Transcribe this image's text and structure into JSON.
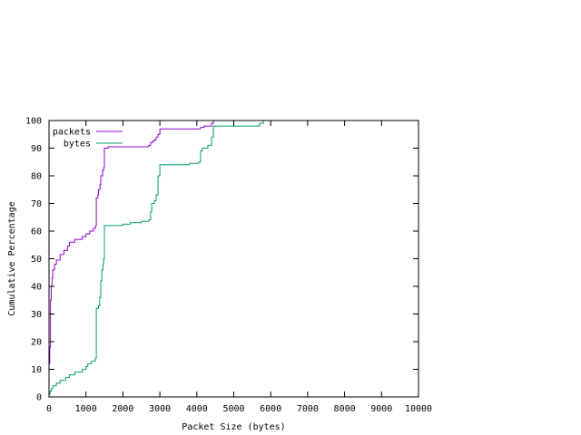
{
  "chart_data": {
    "type": "line",
    "xlabel": "Packet Size (bytes)",
    "ylabel": "Cumulative Percentage",
    "xlim": [
      0,
      10000
    ],
    "ylim": [
      0,
      100
    ],
    "x_ticks": [
      0,
      1000,
      2000,
      3000,
      4000,
      5000,
      6000,
      7000,
      8000,
      9000,
      10000
    ],
    "y_ticks": [
      0,
      10,
      20,
      30,
      40,
      50,
      60,
      70,
      80,
      90,
      100
    ],
    "grid": false,
    "legend_position": "top-left",
    "series": [
      {
        "name": "packets",
        "color": "#9400d3",
        "points": [
          [
            0,
            12
          ],
          [
            20,
            18
          ],
          [
            40,
            35
          ],
          [
            60,
            40
          ],
          [
            80,
            43
          ],
          [
            100,
            46
          ],
          [
            150,
            48
          ],
          [
            200,
            49.5
          ],
          [
            300,
            51.5
          ],
          [
            400,
            53
          ],
          [
            500,
            54.5
          ],
          [
            550,
            56
          ],
          [
            700,
            57
          ],
          [
            900,
            58
          ],
          [
            1000,
            59
          ],
          [
            1100,
            60
          ],
          [
            1200,
            61
          ],
          [
            1260,
            62
          ],
          [
            1280,
            72
          ],
          [
            1320,
            73
          ],
          [
            1340,
            75
          ],
          [
            1380,
            77
          ],
          [
            1400,
            80
          ],
          [
            1450,
            82
          ],
          [
            1480,
            83
          ],
          [
            1500,
            90
          ],
          [
            1600,
            90.5
          ],
          [
            2000,
            90.5
          ],
          [
            2700,
            91
          ],
          [
            2750,
            92
          ],
          [
            2800,
            92.5
          ],
          [
            2850,
            93
          ],
          [
            2900,
            94
          ],
          [
            2950,
            95
          ],
          [
            3000,
            97
          ],
          [
            3500,
            97
          ],
          [
            4100,
            97.5
          ],
          [
            4200,
            98
          ],
          [
            4400,
            99
          ],
          [
            4450,
            100
          ],
          [
            5500,
            100
          ]
        ]
      },
      {
        "name": "bytes",
        "color": "#009e73",
        "points": [
          [
            0,
            1
          ],
          [
            30,
            2
          ],
          [
            60,
            3
          ],
          [
            100,
            4
          ],
          [
            200,
            5
          ],
          [
            300,
            6
          ],
          [
            450,
            7
          ],
          [
            550,
            8
          ],
          [
            700,
            9
          ],
          [
            900,
            10
          ],
          [
            1000,
            11
          ],
          [
            1050,
            12
          ],
          [
            1150,
            13
          ],
          [
            1250,
            14
          ],
          [
            1280,
            32
          ],
          [
            1340,
            33
          ],
          [
            1370,
            36
          ],
          [
            1400,
            42
          ],
          [
            1430,
            46
          ],
          [
            1460,
            48
          ],
          [
            1480,
            50
          ],
          [
            1500,
            62
          ],
          [
            1700,
            62
          ],
          [
            2000,
            62.5
          ],
          [
            2200,
            63
          ],
          [
            2500,
            63.5
          ],
          [
            2700,
            64
          ],
          [
            2750,
            67
          ],
          [
            2780,
            70
          ],
          [
            2850,
            71
          ],
          [
            2900,
            73
          ],
          [
            2950,
            80
          ],
          [
            3000,
            84
          ],
          [
            3500,
            84
          ],
          [
            3800,
            84.5
          ],
          [
            4050,
            85
          ],
          [
            4100,
            89
          ],
          [
            4150,
            90
          ],
          [
            4300,
            91
          ],
          [
            4400,
            94
          ],
          [
            4450,
            98
          ],
          [
            5400,
            98
          ],
          [
            5700,
            99
          ],
          [
            5800,
            100
          ],
          [
            5900,
            100
          ]
        ]
      }
    ]
  }
}
